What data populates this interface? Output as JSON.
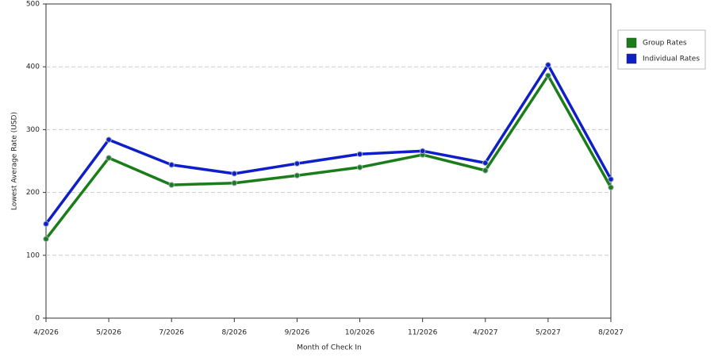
{
  "chart_data": {
    "type": "line",
    "x_label": "Month of Check In",
    "y_label": "Lowest Average Rate (USD)",
    "categories": [
      "4/2026",
      "5/2026",
      "7/2026",
      "8/2026",
      "9/2026",
      "10/2026",
      "11/2026",
      "4/2027",
      "5/2027",
      "8/2027"
    ],
    "series": [
      {
        "name": "Group Rates",
        "color": "#1a7d1a",
        "values": [
          126,
          255,
          212,
          215,
          227,
          240,
          260,
          235,
          386,
          208
        ]
      },
      {
        "name": "Individual Rates",
        "color": "#0f1fc8",
        "values": [
          150,
          284,
          244,
          230,
          246,
          261,
          266,
          247,
          403,
          221
        ]
      }
    ],
    "ylim": [
      0,
      500
    ],
    "yticks": [
      0,
      100,
      200,
      300,
      400,
      500
    ],
    "grid": true,
    "legend": "right"
  }
}
